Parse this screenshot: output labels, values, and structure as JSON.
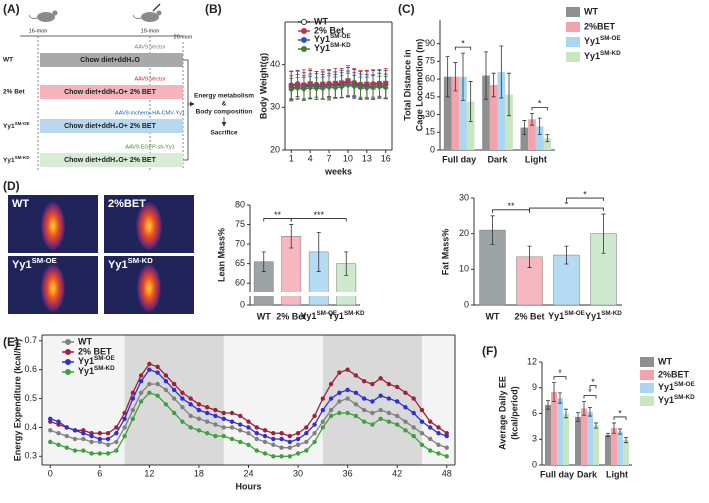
{
  "diagram": {
    "panel_label": "(A)",
    "timepoints": [
      "16-mon",
      "19-mon",
      "20-mon"
    ],
    "groups": [
      {
        "name": "WT",
        "vector": "AAV9-Vector",
        "treatment": "Chow diet+ddH₂O"
      },
      {
        "name": "2% Bet",
        "vector": "AAV9-Vector",
        "treatment": "Chow diet+ddH₂O+ 2% BET"
      },
      {
        "name": "Yy1SM-OE",
        "vector": "AAV9-mcherry-HA-CMV-Yy1",
        "treatment": "Chow diet+ddH₂O+ 2% BET"
      },
      {
        "name": "Yy1SM-KD",
        "vector": "AAV9-EGFP-sh-Yy1",
        "treatment": "Chow diet+ddH₂O+ 2% BET"
      }
    ],
    "outcome": [
      "Energy metabolism",
      "&",
      "Body composition"
    ],
    "endpoint": "Sacrifice"
  },
  "scans": {
    "panel_label": "(D)",
    "labels": [
      "WT",
      "2%BET",
      "Yy1SM-OE",
      "Yy1SM-KD"
    ]
  },
  "chart_data": [
    {
      "type": "line",
      "panel_label": "(B)",
      "xlabel": "weeks",
      "ylabel": "Body Weight(g)",
      "x": [
        1,
        2,
        3,
        4,
        5,
        6,
        7,
        8,
        9,
        10,
        11,
        12,
        13,
        14,
        15,
        16
      ],
      "xlim": [
        0,
        17
      ],
      "xticks": [
        1,
        4,
        7,
        10,
        13,
        16
      ],
      "ylim": [
        20,
        50
      ],
      "yticks": [
        20,
        30,
        40
      ],
      "series": [
        {
          "name": "WT",
          "color": "#333333",
          "marker": "circle",
          "values": [
            35.2,
            35.5,
            35.0,
            35.3,
            35.4,
            35.1,
            35.6,
            35.3,
            35.5,
            36.0,
            35.8,
            35.4,
            35.3,
            35.5,
            35.6,
            35.4
          ],
          "errors": [
            3.2,
            3.0,
            3.1,
            3.3,
            3.0,
            3.2,
            3.1,
            3.0,
            3.2,
            3.3,
            3.1,
            3.0,
            3.2,
            3.1,
            3.0,
            3.2
          ]
        },
        {
          "name": "2% Bet",
          "color": "#c0304a",
          "marker": "square",
          "values": [
            35.0,
            35.3,
            35.2,
            35.5,
            35.1,
            35.4,
            35.3,
            35.6,
            35.7,
            36.2,
            35.6,
            35.2,
            35.4,
            35.3,
            35.5,
            35.6
          ],
          "errors": [
            3.5,
            3.4,
            3.6,
            3.5,
            3.3,
            3.4,
            3.6,
            3.5,
            3.4,
            3.6,
            3.5,
            3.4,
            3.3,
            3.5,
            3.4,
            3.5
          ]
        },
        {
          "name": "Yy1SM-OE",
          "color": "#3050c0",
          "marker": "triangle",
          "values": [
            34.6,
            34.8,
            34.7,
            35.0,
            34.9,
            34.8,
            35.1,
            35.0,
            35.2,
            35.5,
            35.3,
            34.9,
            35.0,
            34.8,
            35.1,
            35.0
          ],
          "errors": [
            2.8,
            2.9,
            2.7,
            2.8,
            3.0,
            2.9,
            2.8,
            2.7,
            2.9,
            3.0,
            2.8,
            2.9,
            2.7,
            2.8,
            2.9,
            2.8
          ]
        },
        {
          "name": "Yy1SM-KD",
          "color": "#4a7a30",
          "marker": "diamond",
          "values": [
            34.2,
            34.5,
            34.3,
            34.6,
            34.4,
            34.5,
            34.7,
            34.6,
            34.8,
            35.2,
            34.9,
            34.6,
            34.5,
            34.7,
            34.8,
            34.6
          ],
          "errors": [
            2.6,
            2.5,
            2.7,
            2.6,
            2.5,
            2.6,
            2.7,
            2.5,
            2.6,
            2.8,
            2.6,
            2.5,
            2.6,
            2.7,
            2.5,
            2.6
          ]
        }
      ]
    },
    {
      "type": "bar",
      "panel_label": "(C)",
      "ylabel": [
        "Total Distance in",
        "Cage Locomotion (m)"
      ],
      "categories": [
        "Full day",
        "Dark",
        "Light"
      ],
      "ylim": [
        0,
        110
      ],
      "yticks": [
        0,
        15,
        30,
        45,
        60,
        75,
        90
      ],
      "series": [
        {
          "name": "WT",
          "color": "#8f8f8f",
          "values": [
            62,
            63,
            19
          ],
          "errors": [
            17,
            20,
            6
          ]
        },
        {
          "name": "2%BET",
          "color": "#f4a3ad",
          "values": [
            62,
            55,
            26
          ],
          "errors": [
            12,
            10,
            5
          ]
        },
        {
          "name": "Yy1SM-OE",
          "color": "#a9d6f0",
          "values": [
            62,
            66,
            20
          ],
          "errors": [
            20,
            22,
            7
          ]
        },
        {
          "name": "Yy1SM-KD",
          "color": "#c8e6c0",
          "values": [
            41,
            47,
            10
          ],
          "errors": [
            17,
            18,
            3
          ]
        }
      ],
      "significance": [
        {
          "label": "*",
          "category": 0,
          "series": [
            1,
            3
          ]
        },
        {
          "label": "*",
          "category": 2,
          "series": [
            1,
            3
          ]
        }
      ]
    },
    {
      "type": "bar",
      "ylabel": "Lean Mass%",
      "categories": [
        "WT",
        "2% Bet",
        "Yy1SM-OE",
        "Yy1SM-KD"
      ],
      "colors": [
        "#9ea3a5",
        "#f5b8c0",
        "#b5dcf2",
        "#cde8cc"
      ],
      "values": [
        65.5,
        72,
        68,
        65
      ],
      "errors": [
        2.5,
        3,
        5,
        3
      ],
      "ylim": [
        0,
        80
      ],
      "axis_break": [
        2,
        58
      ],
      "yticks": [
        0,
        60,
        65,
        70,
        75,
        80
      ],
      "significance": [
        {
          "label": "**",
          "categories": [
            0,
            1
          ]
        },
        {
          "label": "***",
          "categories": [
            1,
            3
          ]
        }
      ]
    },
    {
      "type": "bar",
      "ylabel": "Fat Mass%",
      "categories": [
        "WT",
        "2% Bet",
        "Yy1SM-OE",
        "Yy1SM-KD"
      ],
      "colors": [
        "#9ea3a5",
        "#f5b8c0",
        "#b5dcf2",
        "#cde8cc"
      ],
      "values": [
        21,
        13.5,
        14,
        20
      ],
      "errors": [
        4,
        3,
        2.5,
        5.5
      ],
      "ylim": [
        0,
        30
      ],
      "yticks": [
        0,
        10,
        20,
        30
      ],
      "significance": [
        {
          "label": "**",
          "categories": [
            0,
            1
          ]
        },
        {
          "label": "*",
          "categories": [
            1,
            3
          ]
        },
        {
          "label": "*",
          "categories": [
            2,
            3
          ]
        }
      ]
    },
    {
      "type": "line",
      "panel_label": "(E)",
      "xlabel": "Hours",
      "ylabel": "Energy Expenditure (kcal/hr)",
      "x": [
        0,
        1,
        2,
        3,
        4,
        5,
        6,
        7,
        8,
        9,
        10,
        11,
        12,
        13,
        14,
        15,
        16,
        17,
        18,
        19,
        20,
        21,
        22,
        23,
        24,
        25,
        26,
        27,
        28,
        29,
        30,
        31,
        32,
        33,
        34,
        35,
        36,
        37,
        38,
        39,
        40,
        41,
        42,
        43,
        44,
        45,
        46,
        47,
        48
      ],
      "xlim": [
        -1,
        49
      ],
      "xticks": [
        0,
        6,
        12,
        18,
        24,
        30,
        36,
        42,
        48
      ],
      "ylim": [
        0.27,
        0.72
      ],
      "yticks": [
        0.3,
        0.4,
        0.5,
        0.6,
        0.7
      ],
      "shaded_ranges": [
        [
          9,
          21
        ],
        [
          33,
          45
        ]
      ],
      "series": [
        {
          "name": "WT",
          "color": "#808080",
          "marker": "circle",
          "values": [
            0.39,
            0.38,
            0.37,
            0.36,
            0.36,
            0.35,
            0.35,
            0.34,
            0.35,
            0.4,
            0.46,
            0.52,
            0.55,
            0.55,
            0.53,
            0.5,
            0.47,
            0.44,
            0.43,
            0.42,
            0.41,
            0.4,
            0.4,
            0.39,
            0.38,
            0.36,
            0.35,
            0.34,
            0.33,
            0.33,
            0.34,
            0.35,
            0.38,
            0.42,
            0.46,
            0.49,
            0.5,
            0.48,
            0.46,
            0.45,
            0.46,
            0.45,
            0.44,
            0.42,
            0.4,
            0.38,
            0.36,
            0.34,
            0.33
          ]
        },
        {
          "name": "2% BET",
          "color": "#a0203a",
          "marker": "circle",
          "values": [
            0.42,
            0.41,
            0.4,
            0.39,
            0.39,
            0.38,
            0.38,
            0.38,
            0.4,
            0.45,
            0.52,
            0.58,
            0.62,
            0.61,
            0.58,
            0.55,
            0.52,
            0.5,
            0.48,
            0.47,
            0.46,
            0.45,
            0.45,
            0.44,
            0.42,
            0.4,
            0.39,
            0.38,
            0.38,
            0.37,
            0.38,
            0.4,
            0.44,
            0.5,
            0.55,
            0.59,
            0.6,
            0.58,
            0.56,
            0.55,
            0.57,
            0.55,
            0.54,
            0.52,
            0.5,
            0.46,
            0.42,
            0.4,
            0.38
          ]
        },
        {
          "name": "Yy1SM-OE",
          "color": "#3030d0",
          "marker": "circle",
          "values": [
            0.43,
            0.42,
            0.4,
            0.39,
            0.38,
            0.37,
            0.36,
            0.36,
            0.38,
            0.43,
            0.5,
            0.56,
            0.6,
            0.59,
            0.56,
            0.53,
            0.5,
            0.48,
            0.46,
            0.45,
            0.44,
            0.43,
            0.42,
            0.41,
            0.4,
            0.38,
            0.37,
            0.36,
            0.36,
            0.35,
            0.36,
            0.38,
            0.41,
            0.46,
            0.5,
            0.52,
            0.53,
            0.52,
            0.5,
            0.49,
            0.51,
            0.5,
            0.49,
            0.47,
            0.45,
            0.42,
            0.4,
            0.38,
            0.37
          ]
        },
        {
          "name": "Yy1SM-KD",
          "color": "#40a040",
          "marker": "circle",
          "values": [
            0.35,
            0.34,
            0.33,
            0.32,
            0.32,
            0.31,
            0.31,
            0.31,
            0.32,
            0.37,
            0.43,
            0.49,
            0.52,
            0.51,
            0.48,
            0.45,
            0.42,
            0.4,
            0.39,
            0.38,
            0.37,
            0.37,
            0.36,
            0.35,
            0.34,
            0.32,
            0.31,
            0.3,
            0.3,
            0.3,
            0.31,
            0.32,
            0.35,
            0.4,
            0.44,
            0.45,
            0.45,
            0.44,
            0.42,
            0.41,
            0.43,
            0.42,
            0.41,
            0.39,
            0.37,
            0.34,
            0.32,
            0.31,
            0.3
          ]
        }
      ]
    },
    {
      "type": "bar",
      "panel_label": "(F)",
      "ylabel": [
        "Average Daily EE",
        "(kcal/period)"
      ],
      "categories": [
        "Full day",
        "Dark",
        "Light"
      ],
      "ylim": [
        0,
        12
      ],
      "yticks": [
        0,
        3,
        6,
        9,
        12
      ],
      "series": [
        {
          "name": "WT",
          "color": "#8f8f8f",
          "values": [
            7,
            5.6,
            3.5
          ],
          "errors": [
            0.5,
            0.5,
            0.2
          ]
        },
        {
          "name": "2%BET",
          "color": "#f4a3ad",
          "values": [
            8.5,
            6.6,
            4.3
          ],
          "errors": [
            1.1,
            0.8,
            0.6
          ]
        },
        {
          "name": "Yy1SM-OE",
          "color": "#a9d6f0",
          "values": [
            7.8,
            6.2,
            3.9
          ],
          "errors": [
            0.6,
            0.5,
            0.3
          ]
        },
        {
          "name": "Yy1SM-KD",
          "color": "#c8e6c0",
          "values": [
            6,
            4.6,
            2.9
          ],
          "errors": [
            0.5,
            0.3,
            0.3
          ]
        }
      ],
      "significance": [
        {
          "label": "*",
          "category": 0,
          "series": [
            1,
            3
          ]
        },
        {
          "label": "*",
          "category": 1,
          "series": [
            1,
            3
          ]
        },
        {
          "label": "*",
          "category": 1,
          "series": [
            2,
            3
          ]
        },
        {
          "label": "*",
          "category": 2,
          "series": [
            1,
            3
          ]
        }
      ]
    }
  ]
}
